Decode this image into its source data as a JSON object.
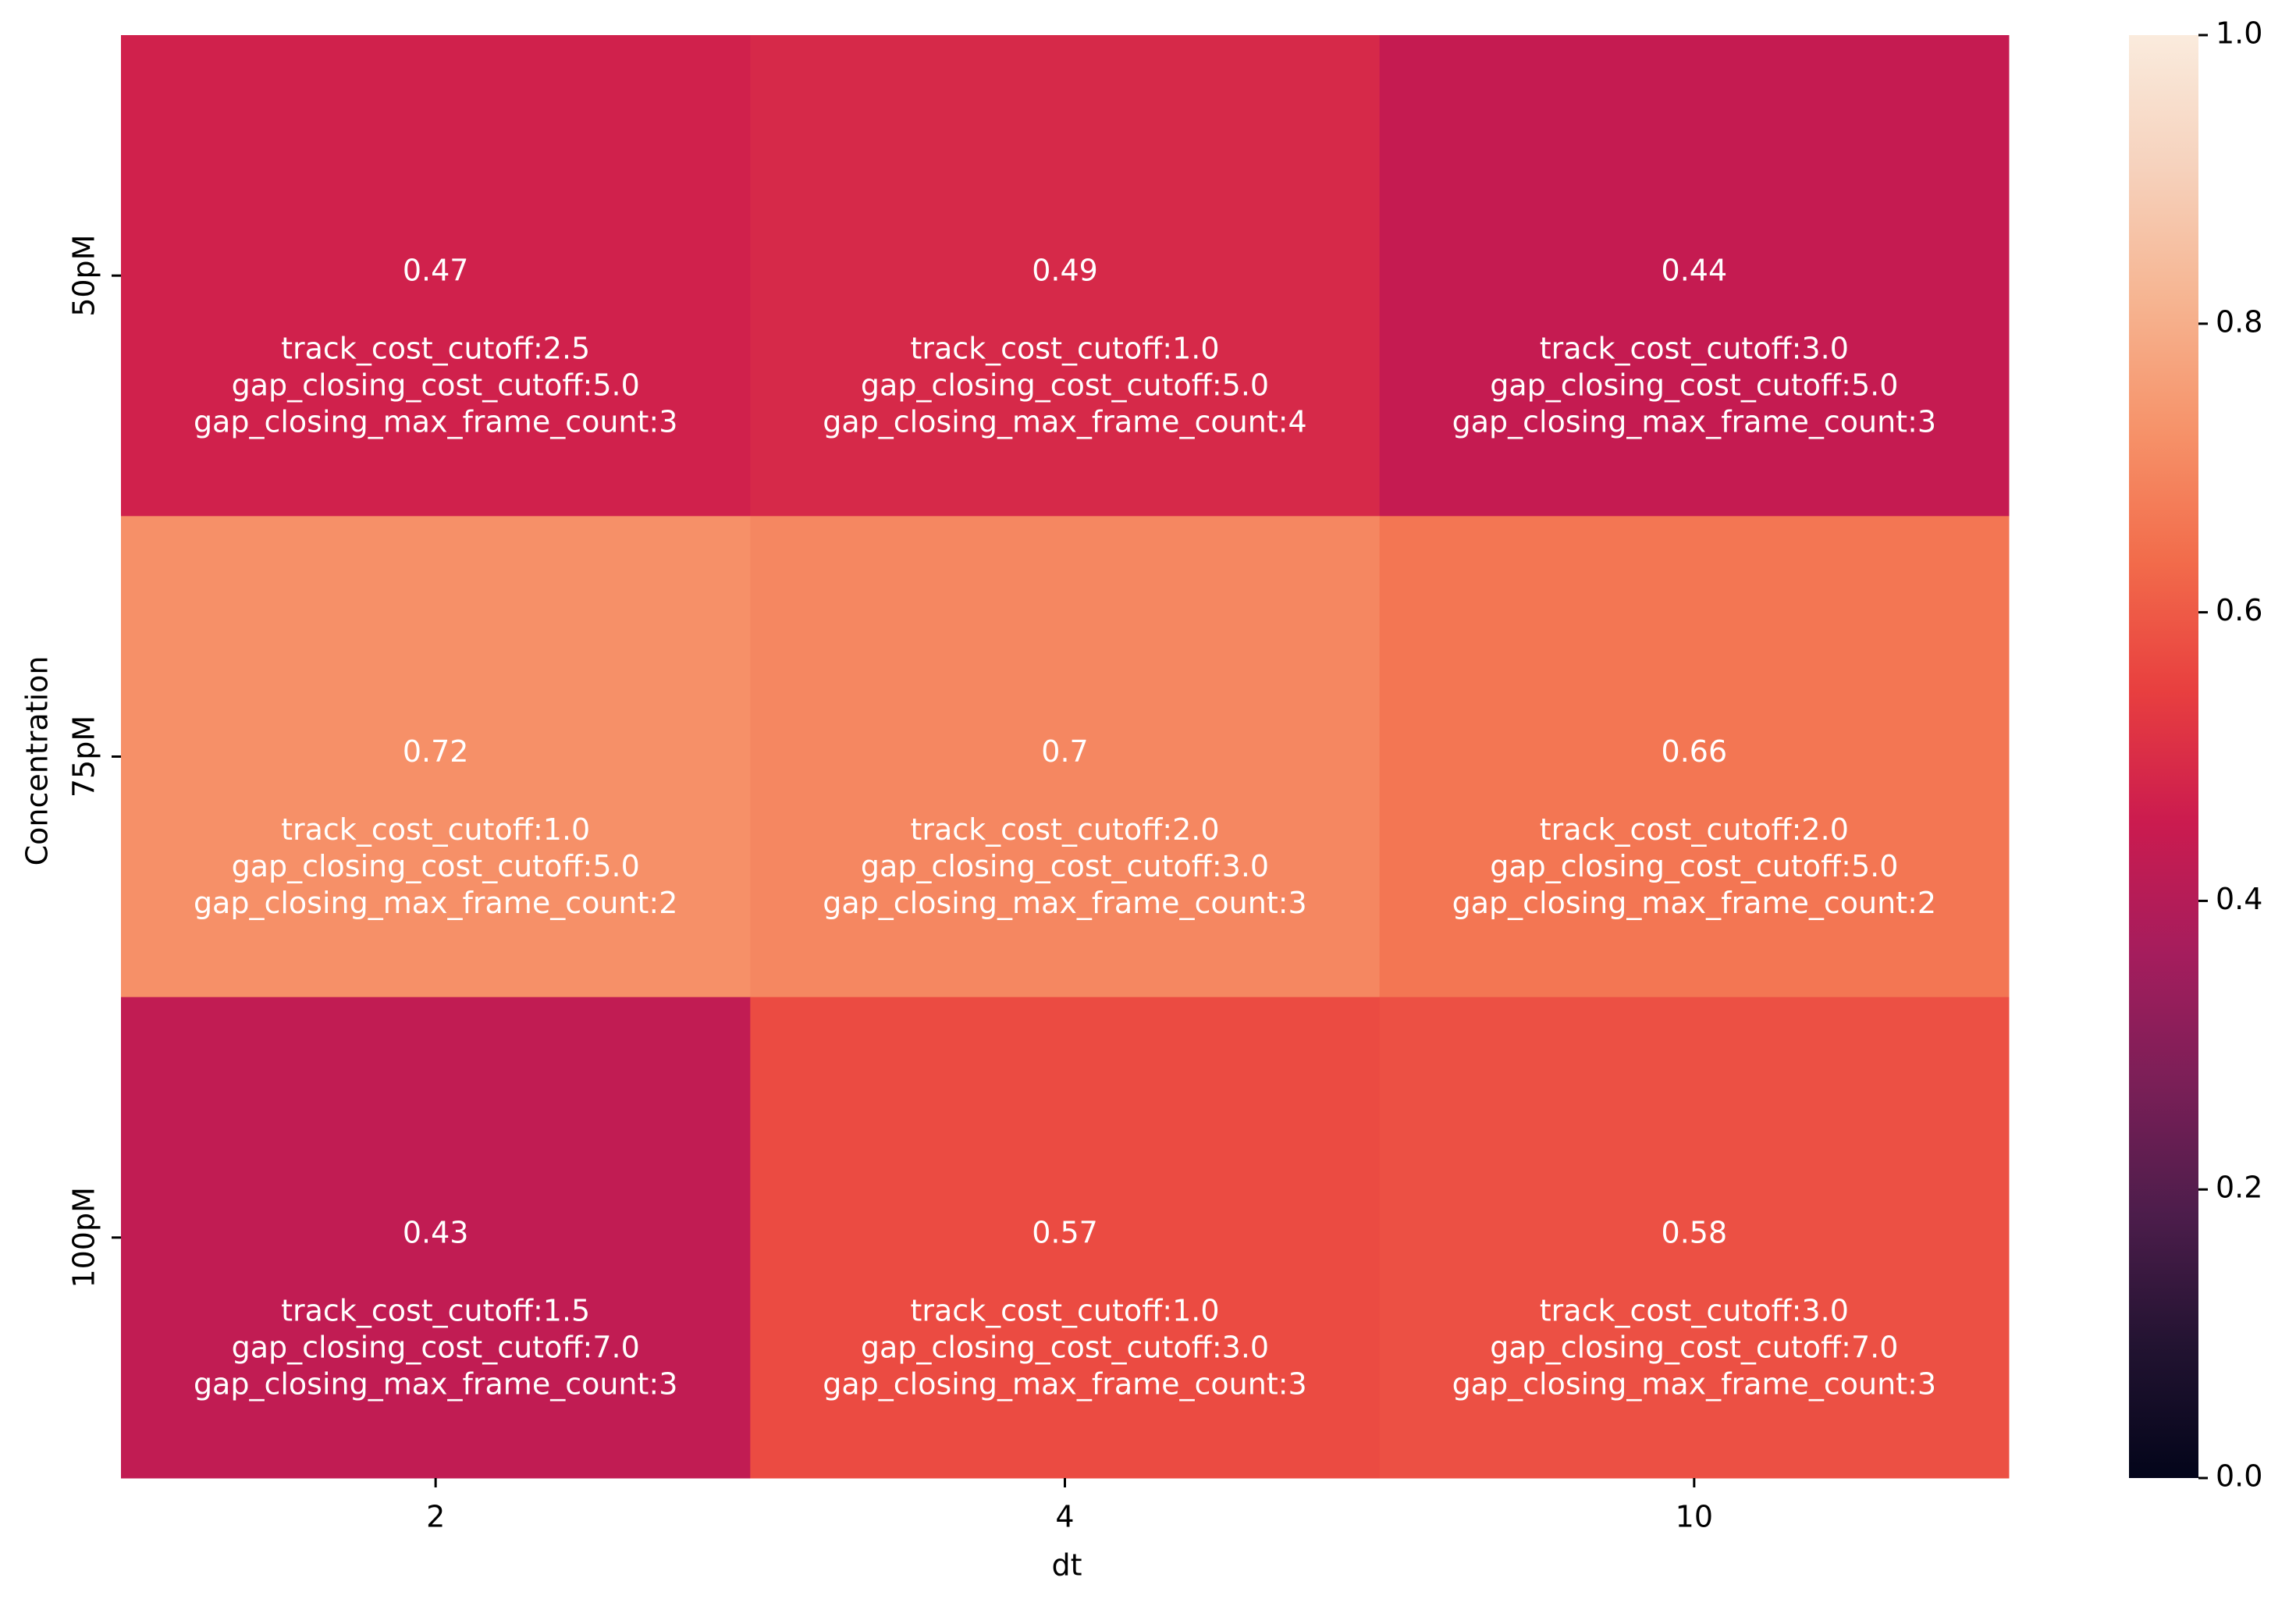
{
  "chart_data": {
    "type": "heatmap",
    "xlabel": "dt",
    "ylabel": "Concentration",
    "x_categories": [
      "2",
      "4",
      "10"
    ],
    "y_categories": [
      "50pM",
      "75pM",
      "100pM"
    ],
    "values": [
      [
        0.47,
        0.49,
        0.44
      ],
      [
        0.72,
        0.7,
        0.66
      ],
      [
        0.43,
        0.57,
        0.58
      ]
    ],
    "value_labels": [
      [
        "0.47",
        "0.49",
        "0.44"
      ],
      [
        "0.72",
        "0.7",
        "0.66"
      ],
      [
        "0.43",
        "0.57",
        "0.58"
      ]
    ],
    "annotations": [
      [
        [
          "track_cost_cutoff:2.5",
          "gap_closing_cost_cutoff:5.0",
          "gap_closing_max_frame_count:3"
        ],
        [
          "track_cost_cutoff:1.0",
          "gap_closing_cost_cutoff:5.0",
          "gap_closing_max_frame_count:4"
        ],
        [
          "track_cost_cutoff:3.0",
          "gap_closing_cost_cutoff:5.0",
          "gap_closing_max_frame_count:3"
        ]
      ],
      [
        [
          "track_cost_cutoff:1.0",
          "gap_closing_cost_cutoff:5.0",
          "gap_closing_max_frame_count:2"
        ],
        [
          "track_cost_cutoff:2.0",
          "gap_closing_cost_cutoff:3.0",
          "gap_closing_max_frame_count:3"
        ],
        [
          "track_cost_cutoff:2.0",
          "gap_closing_cost_cutoff:5.0",
          "gap_closing_max_frame_count:2"
        ]
      ],
      [
        [
          "track_cost_cutoff:1.5",
          "gap_closing_cost_cutoff:7.0",
          "gap_closing_max_frame_count:3"
        ],
        [
          "track_cost_cutoff:1.0",
          "gap_closing_cost_cutoff:3.0",
          "gap_closing_max_frame_count:3"
        ],
        [
          "track_cost_cutoff:3.0",
          "gap_closing_cost_cutoff:7.0",
          "gap_closing_max_frame_count:3"
        ]
      ]
    ],
    "colorbar": {
      "vmin": 0.0,
      "vmax": 1.0,
      "ticks": [
        0.0,
        0.2,
        0.4,
        0.6,
        0.8,
        1.0
      ],
      "tick_labels": [
        "0.0",
        "0.2",
        "0.4",
        "0.6",
        "0.8",
        "1.0"
      ],
      "colormap": "rocket",
      "stops": [
        "#03051a",
        "#221331",
        "#4c1d4b",
        "#7a1f57",
        "#a51d5d",
        "#cb1b4f",
        "#e83f3f",
        "#f26c4b",
        "#f6936a",
        "#f6b592",
        "#f6d2bd",
        "#faebdd"
      ]
    },
    "grid": false
  }
}
